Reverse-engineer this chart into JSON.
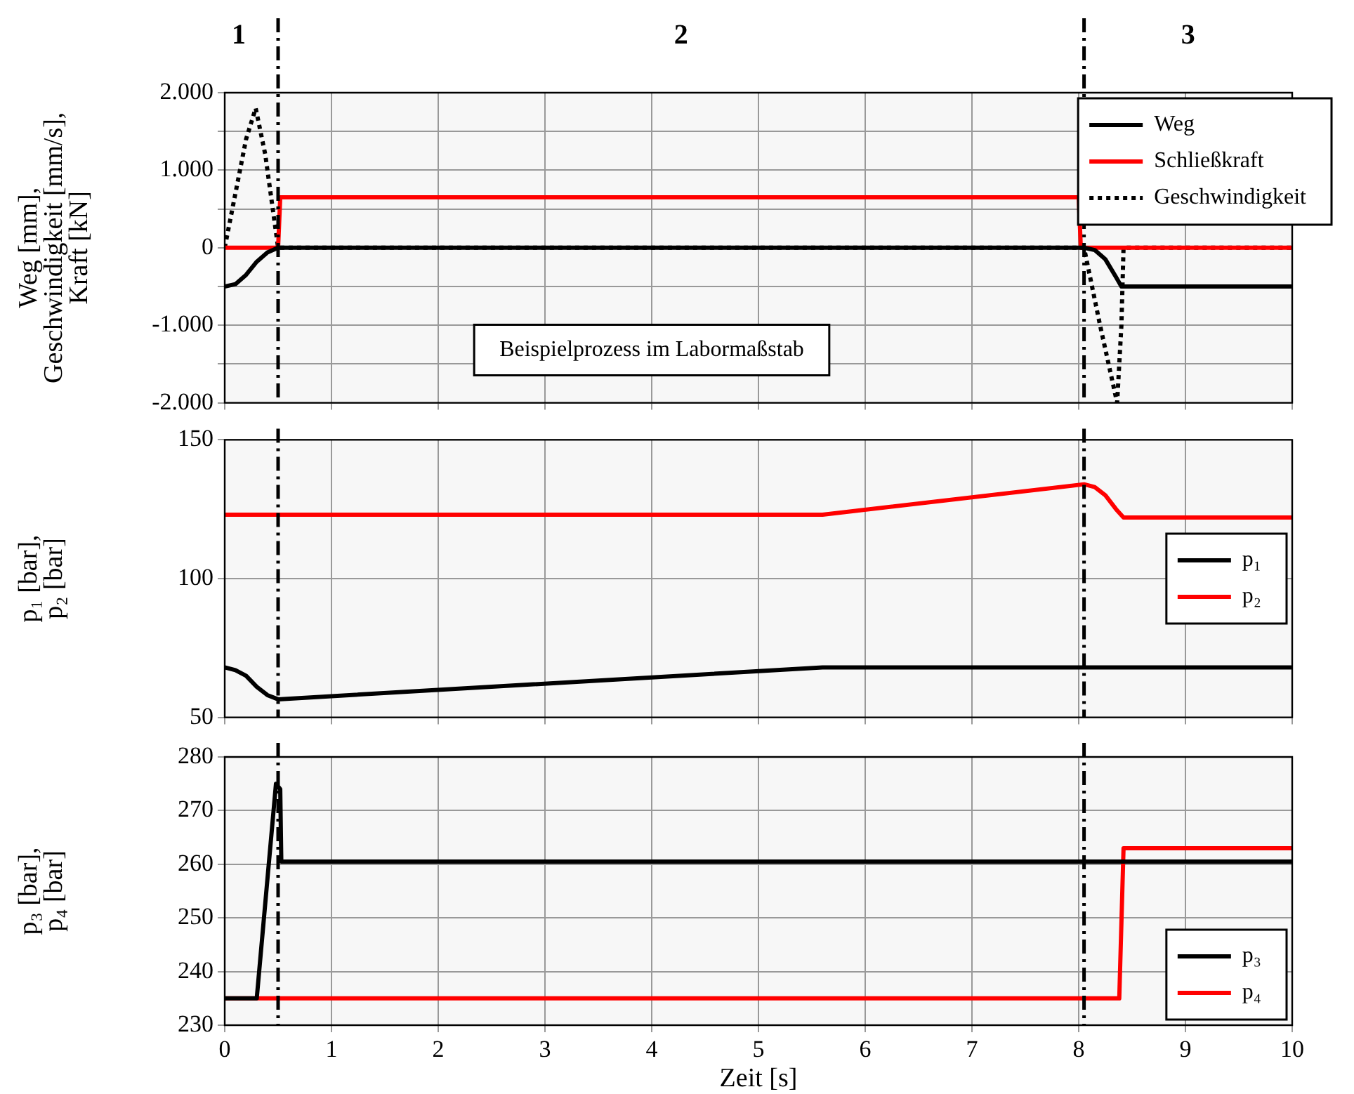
{
  "chart_data": [
    {
      "type": "line",
      "ylabel": "Weg [mm], Geschwindigkeit [mm/s], Kraft [kN]",
      "annotations": [
        "Beispielprozess im Labormaßstab",
        "1",
        "2",
        "3"
      ],
      "xlim": [
        0,
        10
      ],
      "xticks": [
        0,
        1,
        2,
        3,
        4,
        5,
        6,
        7,
        8,
        9,
        10
      ],
      "ylim": [
        -2000,
        2000
      ],
      "yticks": [
        {
          "value": -2000,
          "label": "-2.000"
        },
        {
          "value": -1500,
          "label": null
        },
        {
          "value": -1000,
          "label": "-1.000"
        },
        {
          "value": -500,
          "label": null
        },
        0,
        {
          "value": 500,
          "label": null
        },
        {
          "value": 1000,
          "label": "1.000"
        },
        {
          "value": 1500,
          "label": null
        },
        {
          "value": 2000,
          "label": "2.000"
        }
      ],
      "tick_labels": "y",
      "grid": true,
      "legend": "top right",
      "ref_lines": [
        {
          "axis": "x",
          "value": 0.5,
          "line_style": "dashed"
        },
        {
          "axis": "x",
          "value": 8.05,
          "line_style": "dashed"
        }
      ],
      "series": [
        {
          "name": "Weg",
          "color": "#000000",
          "line_style": "solid",
          "x": [
            0,
            0.1,
            0.2,
            0.3,
            0.4,
            0.5,
            8.05,
            8.15,
            8.25,
            8.35,
            8.4,
            10
          ],
          "values": [
            -500,
            -470,
            -350,
            -180,
            -60,
            0,
            0,
            -30,
            -150,
            -380,
            -500,
            -500
          ]
        },
        {
          "name": "Schließkraft",
          "color": "#ff0000",
          "line_style": "solid",
          "x": [
            0,
            0.5,
            0.52,
            8.0,
            8.02,
            10
          ],
          "values": [
            0,
            0,
            650,
            650,
            0,
            0
          ]
        },
        {
          "name": "Geschwindigkeit",
          "color": "#000000",
          "line_style": "dotted",
          "x": [
            0,
            0.1,
            0.2,
            0.29,
            0.38,
            0.45,
            0.5,
            8.05,
            8.2,
            8.36,
            8.4,
            8.42,
            10
          ],
          "values": [
            0,
            700,
            1400,
            1800,
            1200,
            500,
            0,
            0,
            -1000,
            -2000,
            -1000,
            0,
            0
          ]
        }
      ]
    },
    {
      "type": "line",
      "ylabel": "p₁ [bar], p₂ [bar]",
      "xlim": [
        0,
        10
      ],
      "xticks": [
        0,
        1,
        2,
        3,
        4,
        5,
        6,
        7,
        8,
        9,
        10
      ],
      "ylim": [
        50,
        150
      ],
      "yticks": [
        50,
        100,
        150
      ],
      "tick_labels": "y",
      "grid": true,
      "legend": "right",
      "ref_lines": [
        {
          "axis": "x",
          "value": 0.5,
          "line_style": "dashed"
        },
        {
          "axis": "x",
          "value": 8.05,
          "line_style": "dashed"
        }
      ],
      "series": [
        {
          "name": "p₁",
          "color": "#000000",
          "x": [
            0,
            0.1,
            0.2,
            0.3,
            0.4,
            0.5,
            5.6,
            10
          ],
          "values": [
            68,
            67,
            65,
            61,
            58,
            56.5,
            68,
            68
          ]
        },
        {
          "name": "p₂",
          "color": "#ff0000",
          "x": [
            0,
            5.6,
            8.05,
            8.15,
            8.25,
            8.35,
            8.42,
            10
          ],
          "values": [
            123,
            123,
            134,
            133,
            130,
            125,
            122,
            122
          ]
        }
      ]
    },
    {
      "type": "line",
      "ylabel": "p₃ [bar], p₄ [bar]",
      "xlabel": "Zeit [s]",
      "xlim": [
        0,
        10
      ],
      "xticks": [
        0,
        1,
        2,
        3,
        4,
        5,
        6,
        7,
        8,
        9,
        10
      ],
      "ylim": [
        230,
        280
      ],
      "yticks": [
        230,
        240,
        250,
        260,
        270,
        280
      ],
      "grid": true,
      "legend": "bottom right",
      "ref_lines": [
        {
          "axis": "x",
          "value": 0.5,
          "line_style": "dashed"
        },
        {
          "axis": "x",
          "value": 8.05,
          "line_style": "dashed"
        }
      ],
      "series": [
        {
          "name": "p₃",
          "color": "#000000",
          "x": [
            0,
            0.3,
            0.48,
            0.52,
            0.53,
            10
          ],
          "values": [
            235,
            235,
            275,
            274,
            260.5,
            260.5
          ]
        },
        {
          "name": "p₄",
          "color": "#ff0000",
          "x": [
            0,
            8.38,
            8.42,
            10
          ],
          "values": [
            235,
            235,
            263,
            263
          ]
        }
      ]
    }
  ]
}
